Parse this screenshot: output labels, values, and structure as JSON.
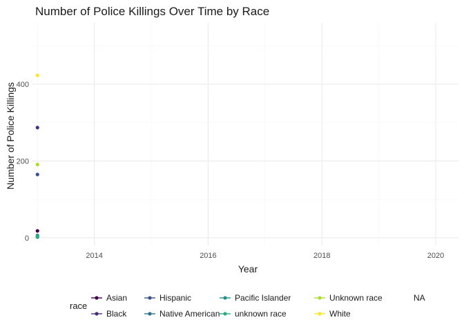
{
  "chart_data": {
    "type": "scatter",
    "title": "Number of Police Killings Over Time by Race",
    "xlabel": "Year",
    "ylabel": "Number of Police Killings",
    "xlim": [
      2012.9,
      2020.4
    ],
    "ylim": [
      -20,
      560
    ],
    "x_ticks": [
      2014,
      2016,
      2018,
      2020
    ],
    "y_ticks": [
      0,
      200,
      400
    ],
    "grid": true,
    "legend_position": "bottom",
    "legend_title": "race",
    "series": [
      {
        "name": "Asian",
        "color": "#440154",
        "points": [
          {
            "x": 2013,
            "y": 18
          }
        ]
      },
      {
        "name": "Black",
        "color": "#472d7b",
        "points": [
          {
            "x": 2013,
            "y": 287
          }
        ]
      },
      {
        "name": "Hispanic",
        "color": "#3b528b",
        "points": [
          {
            "x": 2013,
            "y": 165
          }
        ]
      },
      {
        "name": "Native American",
        "color": "#2c728e",
        "points": [
          {
            "x": 2013,
            "y": 6
          }
        ]
      },
      {
        "name": "Pacific Islander",
        "color": "#21918c",
        "points": [
          {
            "x": 2013,
            "y": 2
          }
        ]
      },
      {
        "name": "unknown race",
        "color": "#28ae80",
        "points": [
          {
            "x": 2013,
            "y": 4
          }
        ]
      },
      {
        "name": "Unknown race",
        "color": "#addc30",
        "points": [
          {
            "x": 2013,
            "y": 191
          }
        ]
      },
      {
        "name": "White",
        "color": "#fde725",
        "points": [
          {
            "x": 2013,
            "y": 423
          }
        ]
      },
      {
        "name": "NA",
        "color": "",
        "points": []
      }
    ]
  }
}
